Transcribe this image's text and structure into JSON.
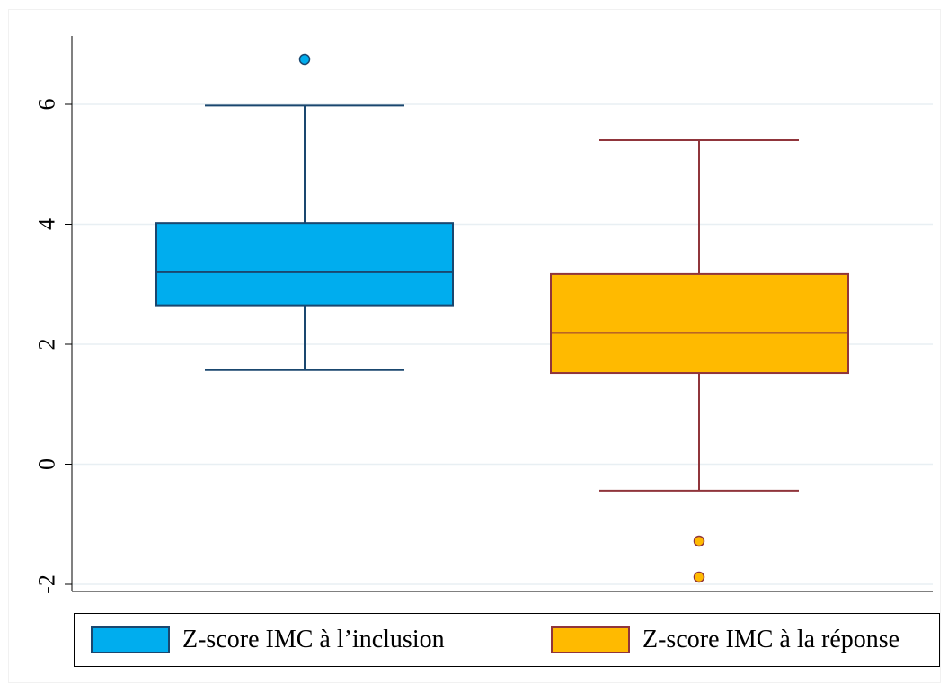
{
  "chart_data": {
    "type": "box",
    "title": "",
    "xlabel": "",
    "ylabel": "",
    "ylim": [
      -2.5,
      7.1
    ],
    "yticks": [
      -2,
      0,
      2,
      4,
      6
    ],
    "grid": true,
    "legend_position": "bottom",
    "series": [
      {
        "name": "Z-score IMC à l’inclusion",
        "color": "#00adee",
        "edge_color": "#1a476f",
        "whisker_low": 1.57,
        "q1": 2.65,
        "median": 3.2,
        "q3": 4.02,
        "whisker_high": 5.98,
        "outliers": [
          6.75
        ]
      },
      {
        "name": "Z-score IMC à la réponse",
        "color": "#ffba00",
        "edge_color": "#90353b",
        "whisker_low": -0.44,
        "q1": 1.52,
        "median": 2.19,
        "q3": 3.17,
        "whisker_high": 5.4,
        "outliers": [
          -1.28,
          -1.88
        ]
      }
    ]
  }
}
